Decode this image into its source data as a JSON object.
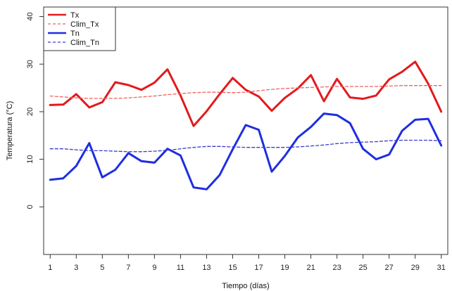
{
  "chart_data": {
    "type": "line",
    "xlabel": "Tiempo (días)",
    "ylabel": "Temperatura (°C)",
    "xlim": [
      0.5,
      31.5
    ],
    "ylim": [
      -10,
      42
    ],
    "x_ticks": [
      1,
      3,
      5,
      7,
      9,
      11,
      13,
      15,
      17,
      19,
      21,
      23,
      25,
      27,
      29,
      31
    ],
    "y_ticks": [
      0,
      10,
      20,
      30,
      40
    ],
    "x": [
      1,
      2,
      3,
      4,
      5,
      6,
      7,
      8,
      9,
      10,
      11,
      12,
      13,
      14,
      15,
      16,
      17,
      18,
      19,
      20,
      21,
      22,
      23,
      24,
      25,
      26,
      27,
      28,
      29,
      30,
      31
    ],
    "legend_position": "top-left",
    "series": [
      {
        "name": "Tx",
        "color": "#e31a1c",
        "style": "solid",
        "values": [
          21.4,
          21.5,
          23.7,
          20.9,
          22.0,
          26.2,
          25.6,
          24.6,
          26.1,
          28.9,
          23.4,
          17.0,
          20.1,
          23.7,
          27.1,
          24.6,
          23.2,
          20.2,
          22.9,
          24.9,
          27.7,
          22.2,
          26.9,
          23.0,
          22.7,
          23.4,
          26.8,
          28.4,
          30.5,
          25.9,
          20.0
        ]
      },
      {
        "name": "Clim_Tx",
        "color": "#f06060",
        "style": "dashed",
        "values": [
          23.3,
          23.1,
          22.9,
          22.8,
          22.8,
          22.8,
          22.9,
          23.1,
          23.3,
          23.6,
          23.8,
          24.0,
          24.1,
          24.1,
          24.0,
          24.1,
          24.4,
          24.7,
          24.9,
          25.0,
          25.1,
          25.2,
          25.3,
          25.3,
          25.3,
          25.3,
          25.4,
          25.5,
          25.5,
          25.5,
          25.5
        ]
      },
      {
        "name": "Tn",
        "color": "#1f2ee0",
        "style": "solid",
        "values": [
          5.7,
          6.0,
          8.6,
          13.4,
          6.2,
          7.8,
          11.3,
          9.6,
          9.3,
          12.2,
          10.8,
          4.1,
          3.7,
          6.7,
          12.1,
          17.2,
          16.2,
          7.4,
          10.7,
          14.6,
          16.8,
          19.6,
          19.3,
          17.6,
          12.2,
          10.0,
          11.0,
          16.0,
          18.3,
          18.5,
          12.9
        ]
      },
      {
        "name": "Clim_Tn",
        "color": "#3a3ad0",
        "style": "dashed",
        "values": [
          12.2,
          12.2,
          12.0,
          11.8,
          11.8,
          11.7,
          11.6,
          11.6,
          11.7,
          11.9,
          12.2,
          12.5,
          12.7,
          12.7,
          12.6,
          12.5,
          12.5,
          12.5,
          12.5,
          12.6,
          12.8,
          13.0,
          13.3,
          13.5,
          13.6,
          13.7,
          13.9,
          14.0,
          14.0,
          14.0,
          13.9
        ]
      }
    ]
  }
}
